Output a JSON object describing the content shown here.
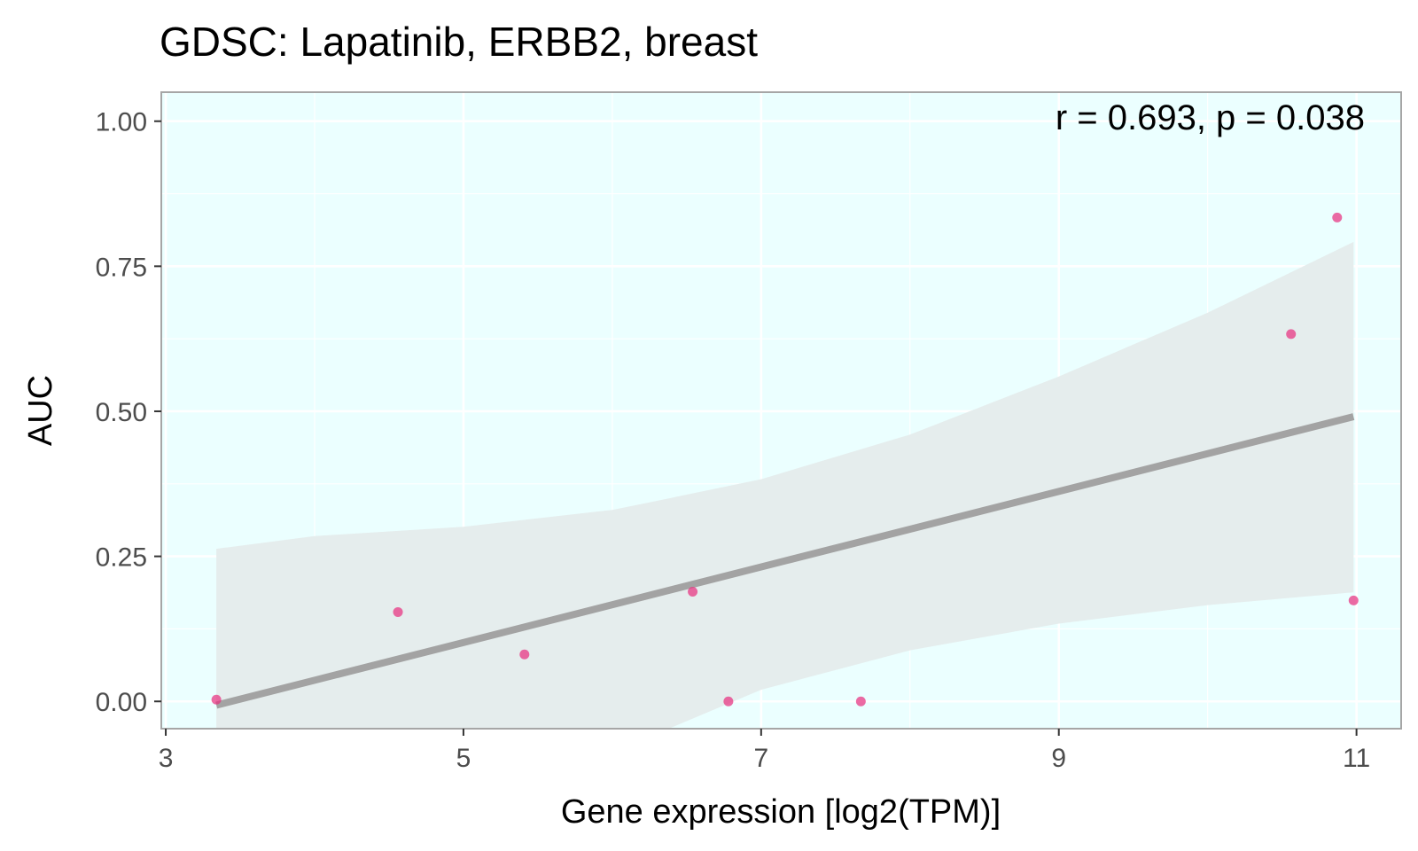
{
  "chart_data": {
    "type": "scatter",
    "title": "GDSC: Lapatinib, ERBB2, breast",
    "xlabel": "Gene expression [log2(TPM)]",
    "ylabel": "AUC",
    "annotation": "r = 0.693, p = 0.038",
    "xlim": [
      2.97,
      11.3
    ],
    "ylim": [
      -0.047,
      1.05
    ],
    "x_ticks": [
      3,
      5,
      7,
      9,
      11
    ],
    "x_tick_labels": [
      "3",
      "5",
      "7",
      "9",
      "11"
    ],
    "y_ticks": [
      0,
      0.25,
      0.5,
      0.75,
      1.0
    ],
    "y_tick_labels": [
      "0.00",
      "0.25",
      "0.50",
      "0.75",
      "1.00"
    ],
    "grid": true,
    "legend": "none",
    "colors": {
      "panel_background": "#ebffff",
      "grid": "#ffffff",
      "panel_border": "#a6a6a6",
      "point": "#e8317f",
      "fit_line": "#a3a3a3",
      "confidence_band": "#e5eded"
    },
    "points": [
      {
        "x": 3.34,
        "y": 0.003
      },
      {
        "x": 4.56,
        "y": 0.154
      },
      {
        "x": 5.41,
        "y": 0.081
      },
      {
        "x": 6.54,
        "y": 0.189
      },
      {
        "x": 6.78,
        "y": 0.0
      },
      {
        "x": 7.67,
        "y": 0.0
      },
      {
        "x": 10.56,
        "y": 0.633
      },
      {
        "x": 10.87,
        "y": 0.834
      },
      {
        "x": 10.98,
        "y": 0.174
      }
    ],
    "fit": {
      "x_range": [
        3.34,
        10.98
      ],
      "intercept": -0.224,
      "slope": 0.0651
    },
    "confidence_band": [
      {
        "x": 3.34,
        "lower": -0.47,
        "upper": 0.263
      },
      {
        "x": 4.0,
        "lower": -0.37,
        "upper": 0.285
      },
      {
        "x": 5.0,
        "lower": -0.21,
        "upper": 0.301
      },
      {
        "x": 6.0,
        "lower": -0.1,
        "upper": 0.33
      },
      {
        "x": 6.38,
        "lower": -0.047,
        "upper": 0.35
      },
      {
        "x": 7.0,
        "lower": 0.02,
        "upper": 0.383
      },
      {
        "x": 8.0,
        "lower": 0.088,
        "upper": 0.46
      },
      {
        "x": 9.0,
        "lower": 0.134,
        "upper": 0.56
      },
      {
        "x": 10.0,
        "lower": 0.166,
        "upper": 0.67
      },
      {
        "x": 10.98,
        "lower": 0.188,
        "upper": 0.792
      }
    ]
  }
}
